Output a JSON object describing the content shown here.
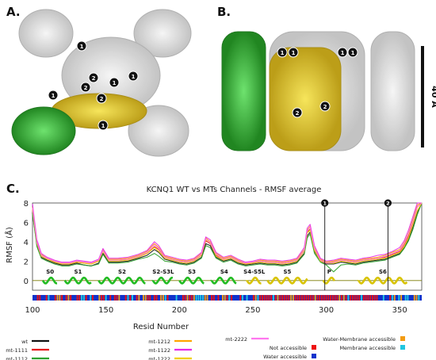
{
  "panels": {
    "a_label": "A.",
    "b_label": "B.",
    "c_label": "C.",
    "structure_markers": [
      "1",
      "2"
    ],
    "scale_bar_label": "40 Å"
  },
  "chart_data": {
    "type": "line",
    "title": "KCNQ1 WT vs MTs Channels - RMSF average",
    "xlabel": "Resid Number",
    "ylabel": "RMSF (Å)",
    "xlim": [
      100,
      365
    ],
    "ylim": [
      -1,
      8
    ],
    "xticks": [
      100,
      150,
      200,
      250,
      300,
      350
    ],
    "yticks": [
      0,
      2,
      4,
      6,
      8
    ],
    "grid": true,
    "x": [
      100,
      103,
      106,
      110,
      115,
      120,
      125,
      130,
      135,
      140,
      145,
      148,
      152,
      158,
      165,
      172,
      178,
      183,
      186,
      190,
      195,
      200,
      205,
      210,
      215,
      218,
      221,
      225,
      230,
      235,
      240,
      245,
      250,
      255,
      260,
      265,
      270,
      275,
      280,
      285,
      287,
      289,
      292,
      296,
      300,
      305,
      310,
      315,
      320,
      325,
      330,
      335,
      340,
      345,
      350,
      353,
      356,
      359,
      362,
      365
    ],
    "series": [
      {
        "name": "wt",
        "values": [
          7.0,
          3.6,
          2.4,
          2.1,
          1.8,
          1.6,
          1.6,
          1.8,
          1.6,
          1.5,
          1.8,
          2.8,
          1.9,
          1.9,
          2.0,
          2.3,
          2.6,
          3.2,
          2.9,
          2.2,
          2.0,
          1.8,
          1.7,
          1.9,
          2.4,
          3.8,
          3.6,
          2.4,
          2.0,
          2.2,
          1.8,
          1.6,
          1.7,
          1.8,
          1.7,
          1.7,
          1.6,
          1.7,
          1.9,
          2.8,
          4.6,
          5.0,
          3.0,
          2.0,
          1.7,
          1.7,
          1.9,
          1.8,
          1.7,
          1.9,
          2.0,
          2.1,
          2.2,
          2.5,
          2.8,
          3.4,
          4.2,
          5.5,
          7.0,
          8.0
        ]
      },
      {
        "name": "mt-1111",
        "values": [
          7.3,
          3.9,
          2.6,
          2.3,
          1.9,
          1.7,
          1.7,
          1.9,
          1.8,
          1.7,
          2.0,
          3.1,
          2.1,
          2.1,
          2.2,
          2.5,
          2.8,
          3.5,
          3.2,
          2.4,
          2.2,
          2.0,
          1.9,
          2.1,
          2.6,
          4.1,
          3.8,
          2.6,
          2.2,
          2.4,
          2.0,
          1.7,
          1.8,
          2.0,
          1.9,
          1.9,
          1.8,
          1.9,
          2.1,
          3.1,
          5.0,
          5.3,
          3.2,
          2.1,
          1.8,
          1.9,
          2.1,
          2.0,
          1.9,
          2.1,
          2.2,
          2.3,
          2.4,
          2.7,
          3.0,
          3.7,
          4.6,
          6.0,
          7.6,
          8.0
        ]
      },
      {
        "name": "mt-1112",
        "values": [
          6.9,
          3.5,
          2.3,
          2.0,
          1.7,
          1.5,
          1.5,
          1.7,
          1.6,
          1.5,
          1.7,
          2.7,
          1.8,
          1.8,
          1.9,
          2.2,
          2.4,
          2.8,
          2.5,
          2.0,
          1.9,
          1.7,
          1.6,
          1.8,
          2.3,
          3.6,
          3.4,
          2.3,
          1.9,
          2.1,
          1.7,
          1.5,
          1.6,
          1.7,
          1.6,
          1.6,
          1.5,
          1.6,
          1.8,
          2.7,
          4.4,
          4.8,
          2.8,
          1.9,
          1.6,
          0.9,
          1.6,
          1.7,
          1.6,
          1.8,
          1.9,
          2.0,
          2.1,
          2.4,
          2.7,
          3.3,
          4.1,
          5.3,
          6.8,
          8.0
        ]
      },
      {
        "name": "mt-1212",
        "values": [
          7.6,
          4.0,
          2.7,
          2.3,
          2.0,
          1.8,
          1.8,
          2.0,
          1.9,
          1.8,
          2.1,
          3.2,
          2.2,
          2.2,
          2.3,
          2.6,
          3.0,
          3.8,
          3.4,
          2.5,
          2.3,
          2.1,
          2.0,
          2.2,
          2.8,
          4.4,
          4.0,
          2.8,
          2.3,
          2.5,
          2.1,
          1.8,
          1.9,
          2.1,
          2.0,
          2.0,
          1.9,
          2.0,
          2.2,
          3.2,
          5.2,
          5.6,
          3.4,
          2.2,
          1.9,
          2.0,
          2.2,
          2.1,
          2.0,
          2.2,
          2.3,
          2.4,
          2.6,
          2.9,
          3.2,
          3.9,
          4.9,
          6.3,
          7.8,
          8.0
        ]
      },
      {
        "name": "mt-1122",
        "values": [
          7.9,
          4.2,
          2.8,
          2.4,
          2.1,
          1.9,
          1.9,
          2.1,
          2.0,
          1.9,
          2.2,
          3.3,
          2.3,
          2.3,
          2.4,
          2.7,
          3.1,
          4.0,
          3.6,
          2.6,
          2.4,
          2.2,
          2.1,
          2.3,
          2.9,
          4.5,
          4.2,
          2.9,
          2.4,
          2.6,
          2.2,
          1.9,
          2.0,
          2.2,
          2.1,
          2.1,
          2.0,
          2.1,
          2.3,
          3.4,
          5.4,
          5.8,
          3.6,
          2.3,
          2.0,
          2.1,
          2.3,
          2.2,
          2.1,
          2.3,
          2.4,
          2.6,
          2.7,
          3.0,
          3.4,
          4.1,
          5.2,
          6.6,
          8.0,
          8.0
        ]
      },
      {
        "name": "mt-1222",
        "values": [
          7.4,
          3.8,
          2.5,
          2.2,
          1.9,
          1.7,
          1.7,
          1.9,
          1.8,
          1.7,
          2.0,
          3.0,
          2.0,
          2.0,
          2.1,
          2.4,
          2.8,
          3.4,
          3.0,
          2.3,
          2.1,
          1.9,
          1.8,
          2.0,
          2.6,
          4.2,
          3.9,
          2.5,
          2.1,
          2.3,
          1.9,
          1.7,
          1.8,
          1.9,
          1.8,
          1.8,
          1.7,
          1.8,
          2.0,
          3.0,
          4.9,
          5.2,
          3.1,
          2.0,
          1.8,
          1.8,
          2.0,
          1.9,
          1.8,
          2.0,
          2.1,
          2.2,
          2.3,
          2.6,
          2.9,
          3.5,
          4.4,
          5.8,
          7.2,
          8.0
        ]
      },
      {
        "name": "mt-2222",
        "values": [
          7.5,
          3.9,
          2.6,
          2.3,
          2.0,
          1.8,
          1.8,
          2.0,
          1.9,
          1.8,
          2.1,
          3.1,
          2.1,
          2.1,
          2.2,
          2.5,
          2.9,
          3.7,
          3.3,
          2.4,
          2.2,
          2.0,
          1.9,
          2.1,
          2.7,
          4.3,
          3.9,
          2.7,
          2.2,
          2.4,
          2.0,
          1.8,
          1.9,
          2.0,
          1.9,
          1.9,
          1.8,
          1.9,
          2.1,
          3.1,
          5.1,
          5.5,
          3.3,
          2.1,
          1.8,
          1.9,
          2.1,
          2.0,
          1.9,
          2.1,
          2.2,
          2.3,
          2.5,
          2.8,
          3.1,
          3.8,
          4.8,
          6.1,
          7.6,
          8.0
        ]
      }
    ],
    "series_colors": {
      "wt": "#111111",
      "mt-1111": "#e41a1c",
      "mt-1112": "#2ca02c",
      "mt-1212": "#ffa500",
      "mt-1122": "#e62ae6",
      "mt-1222": "#f0d000",
      "mt-2222": "#ff77ee"
    },
    "markers": [
      {
        "label": "1",
        "x": 299
      },
      {
        "label": "2",
        "x": 342
      }
    ],
    "secondary_structure": [
      {
        "label": "S0",
        "start": 107,
        "end": 117,
        "color": "#22bb22"
      },
      {
        "label": "S1",
        "start": 122,
        "end": 140,
        "color": "#22bb22"
      },
      {
        "label": "S2",
        "start": 145,
        "end": 177,
        "color": "#22bb22"
      },
      {
        "label": "S2-S3L",
        "start": 182,
        "end": 196,
        "color": "#22bb22"
      },
      {
        "label": "S3",
        "start": 200,
        "end": 217,
        "color": "#22bb22"
      },
      {
        "label": "S4",
        "start": 222,
        "end": 239,
        "color": "#22bb22"
      },
      {
        "label": "S4-S5L",
        "start": 246,
        "end": 256,
        "color": "#d8c300"
      },
      {
        "label": "S5",
        "start": 260,
        "end": 287,
        "color": "#d8c300"
      },
      {
        "label": "P",
        "start": 298,
        "end": 306,
        "color": "#d8c300"
      },
      {
        "label": "S6",
        "start": 322,
        "end": 355,
        "color": "#d8c300"
      }
    ],
    "legend": [
      {
        "label": "wt",
        "kind": "line",
        "color": "#111111"
      },
      {
        "label": "mt-1111",
        "kind": "line",
        "color": "#e41a1c"
      },
      {
        "label": "mt-1112",
        "kind": "line",
        "color": "#2ca02c"
      },
      {
        "label": "mt-1212",
        "kind": "line",
        "color": "#ffa500"
      },
      {
        "label": "mt-1122",
        "kind": "line",
        "color": "#e62ae6"
      },
      {
        "label": "mt-1222",
        "kind": "line",
        "color": "#f0d000"
      },
      {
        "label": "mt-2222",
        "kind": "line",
        "color": "#ff77ee"
      },
      {
        "label": "Not accessible",
        "kind": "square",
        "color": "#ee1111"
      },
      {
        "label": "Water accessible",
        "kind": "square",
        "color": "#1133cc"
      },
      {
        "label": "Water-Membrane accessible",
        "kind": "square",
        "color": "#f39c12"
      },
      {
        "label": "Membrane accessible",
        "kind": "square",
        "color": "#22c6e0"
      }
    ]
  }
}
